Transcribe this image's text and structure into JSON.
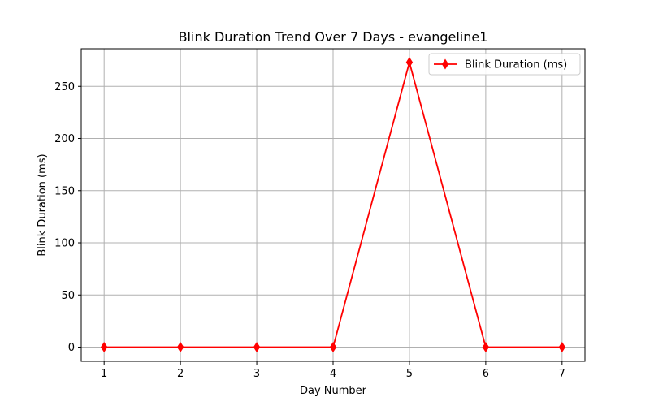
{
  "chart_data": {
    "type": "line",
    "title": "Blink Duration Trend Over 7 Days - evangeline1",
    "xlabel": "Day Number",
    "ylabel": "Blink Duration (ms)",
    "x": [
      1,
      2,
      3,
      4,
      5,
      6,
      7
    ],
    "xlim": [
      0.7,
      7.3
    ],
    "ylim": [
      -13.6,
      286
    ],
    "xticks": [
      "1",
      "2",
      "3",
      "4",
      "5",
      "6",
      "7"
    ],
    "yticks": [
      "0",
      "50",
      "100",
      "150",
      "200",
      "250"
    ],
    "grid": true,
    "legend_position": "upper right",
    "series": [
      {
        "name": "Blink Duration (ms)",
        "values": [
          0,
          0,
          0,
          0,
          273,
          0,
          0
        ],
        "color": "#ff0000",
        "marker": "thin-diamond"
      }
    ]
  }
}
